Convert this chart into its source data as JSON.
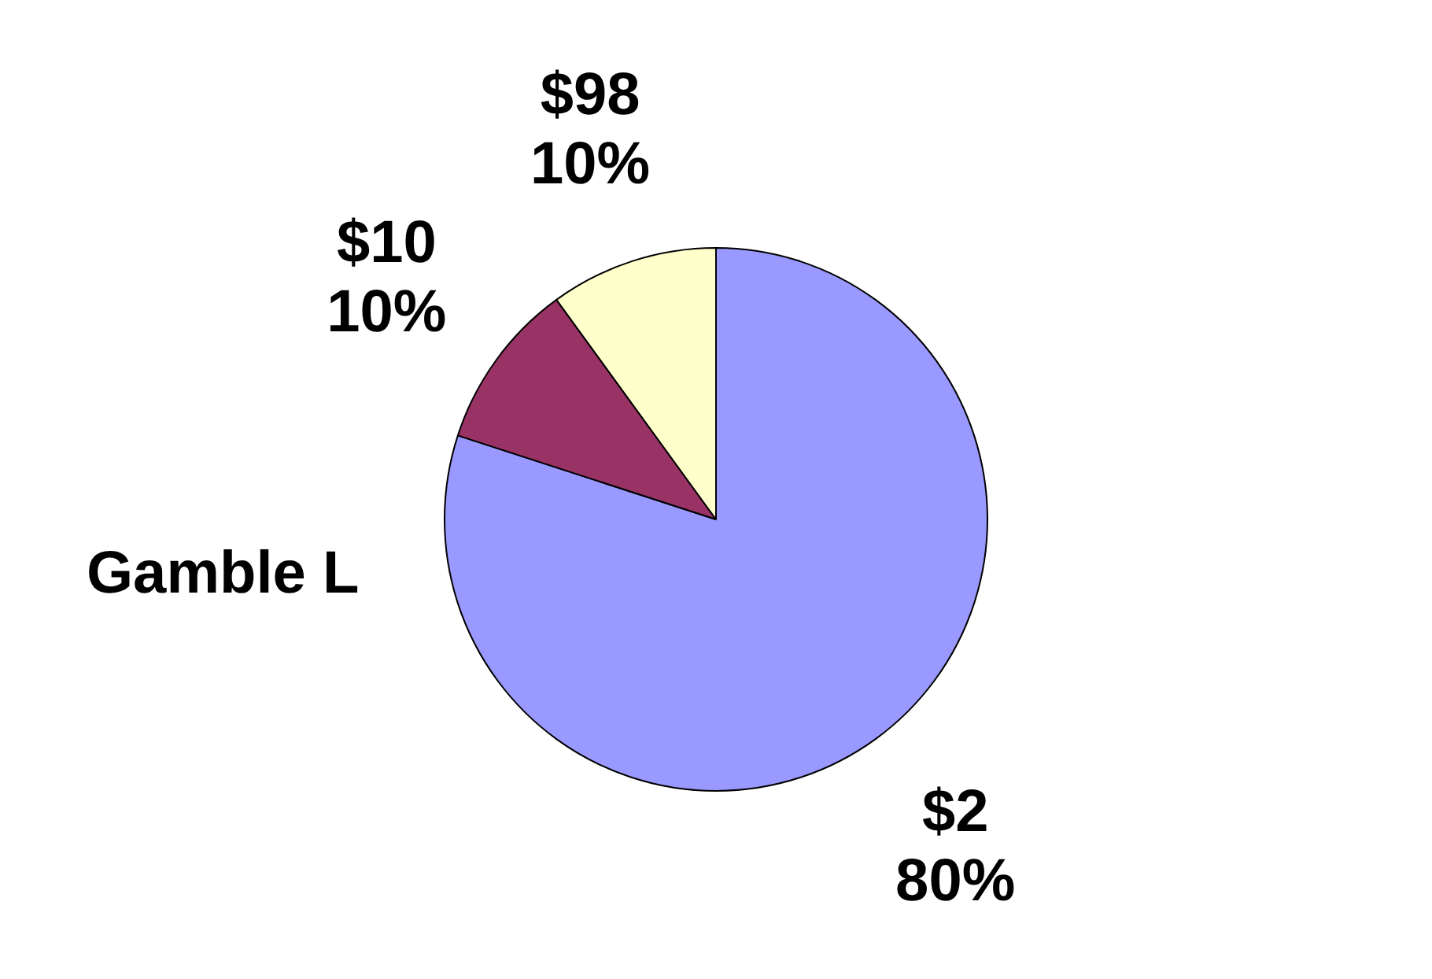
{
  "chart_data": {
    "type": "pie",
    "title": "Gamble L",
    "categories": [
      "$2",
      "$10",
      "$98"
    ],
    "values": [
      80,
      10,
      10
    ],
    "value_labels": [
      "80%",
      "10%",
      "10%"
    ],
    "colors": [
      "#9999ff",
      "#993366",
      "#ffffcc"
    ],
    "legend": false
  }
}
